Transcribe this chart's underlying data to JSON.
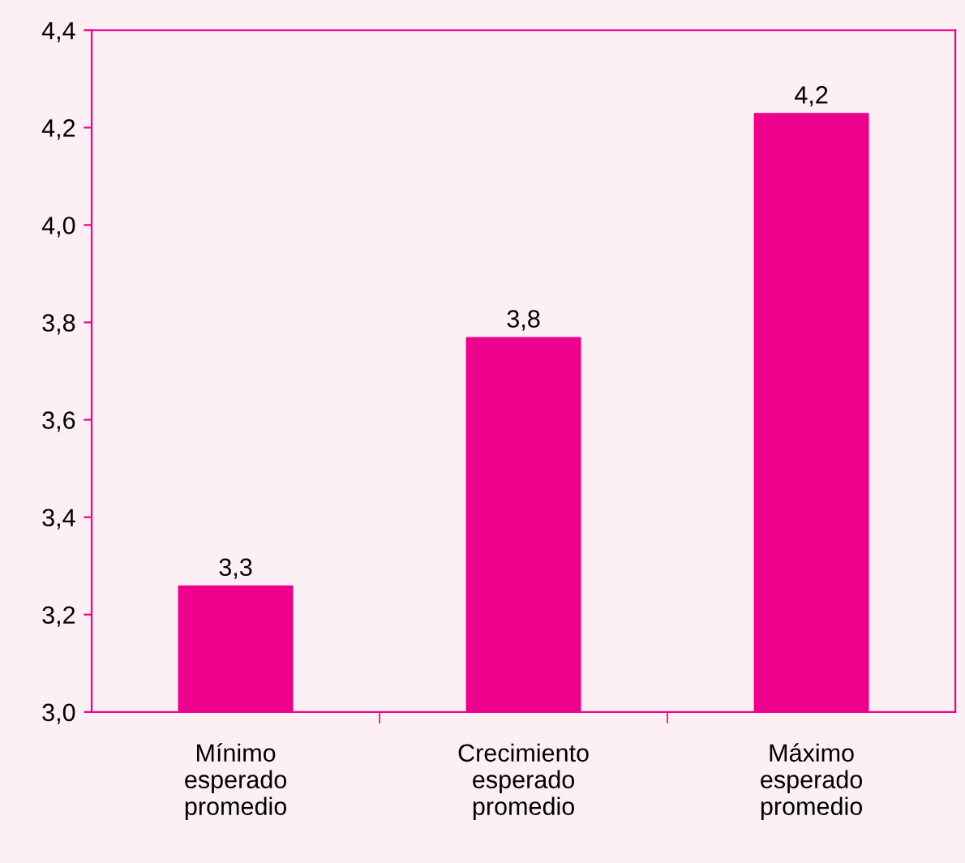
{
  "chart_data": {
    "type": "bar",
    "categories": [
      "Mínimo\nesperado\npromedio",
      "Crecimiento\nesperado\npromedio",
      "Máximo\nesperado\npromedio"
    ],
    "values": [
      3.26,
      3.77,
      4.23
    ],
    "value_labels": [
      "3,3",
      "3,8",
      "4,2"
    ],
    "color": "#ec008c",
    "ylim": [
      3.0,
      4.4
    ],
    "yticks": [
      {
        "value": 3.0,
        "label": "3,0"
      },
      {
        "value": 3.2,
        "label": "3,2"
      },
      {
        "value": 3.4,
        "label": "3,4"
      },
      {
        "value": 3.6,
        "label": "3,6"
      },
      {
        "value": 3.8,
        "label": "3,8"
      },
      {
        "value": 4.0,
        "label": "4,0"
      },
      {
        "value": 4.2,
        "label": "4,2"
      },
      {
        "value": 4.4,
        "label": "4,4"
      }
    ],
    "grid": false,
    "legend": false
  }
}
